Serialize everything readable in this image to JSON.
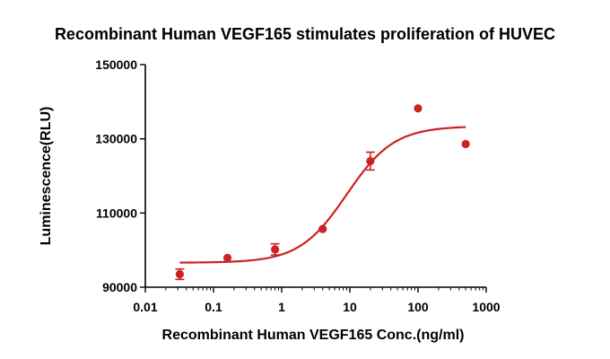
{
  "chart_data": {
    "type": "scatter",
    "title": "Recombinant Human VEGF165 stimulates proliferation of HUVEC",
    "xlabel": "Recombinant Human VEGF165 Conc.(ng/ml)",
    "ylabel": "Luminescence(RLU)",
    "xscale": "log",
    "xlim": [
      0.01,
      1000
    ],
    "ylim": [
      90000,
      150000
    ],
    "xticks": [
      0.01,
      0.1,
      1,
      10,
      100,
      1000
    ],
    "xtick_labels": [
      "0.01",
      "0.1",
      "1",
      "10",
      "100",
      "1000"
    ],
    "yticks": [
      90000,
      110000,
      130000,
      150000
    ],
    "ytick_labels": [
      "90000",
      "110000",
      "130000",
      "150000"
    ],
    "grid": false,
    "color": "#cc2222",
    "series": [
      {
        "x": [
          0.032,
          0.16,
          0.8,
          4,
          20,
          100,
          500
        ],
        "y": [
          93500,
          97900,
          100200,
          105700,
          124000,
          138200,
          128600
        ],
        "error": [
          1400,
          0,
          1500,
          0,
          2400,
          0,
          0
        ]
      }
    ],
    "fit": {
      "type": "4PL",
      "bottom": 96600,
      "top": 133400,
      "ec50": 9.0,
      "hill": 1.25
    }
  }
}
